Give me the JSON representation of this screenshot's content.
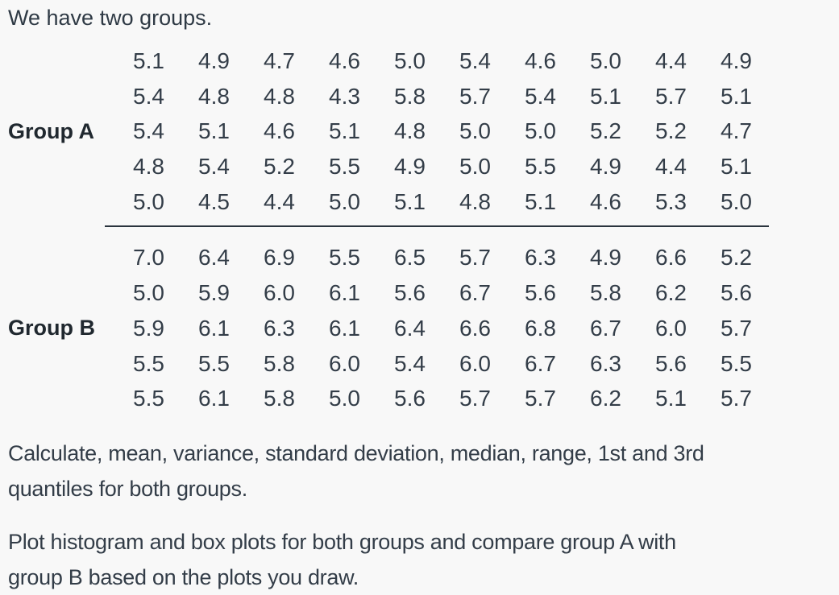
{
  "title": "We have two groups.",
  "groups": [
    {
      "label": "Group A",
      "rows": [
        [
          "5.1",
          "4.9",
          "4.7",
          "4.6",
          "5.0",
          "5.4",
          "4.6",
          "5.0",
          "4.4",
          "4.9"
        ],
        [
          "5.4",
          "4.8",
          "4.8",
          "4.3",
          "5.8",
          "5.7",
          "5.4",
          "5.1",
          "5.7",
          "5.1"
        ],
        [
          "5.4",
          "5.1",
          "4.6",
          "5.1",
          "4.8",
          "5.0",
          "5.0",
          "5.2",
          "5.2",
          "4.7"
        ],
        [
          "4.8",
          "5.4",
          "5.2",
          "5.5",
          "4.9",
          "5.0",
          "5.5",
          "4.9",
          "4.4",
          "5.1"
        ],
        [
          "5.0",
          "4.5",
          "4.4",
          "5.0",
          "5.1",
          "4.8",
          "5.1",
          "4.6",
          "5.3",
          "5.0"
        ]
      ]
    },
    {
      "label": "Group B",
      "rows": [
        [
          "7.0",
          "6.4",
          "6.9",
          "5.5",
          "6.5",
          "5.7",
          "6.3",
          "4.9",
          "6.6",
          "5.2"
        ],
        [
          "5.0",
          "5.9",
          "6.0",
          "6.1",
          "5.6",
          "6.7",
          "5.6",
          "5.8",
          "6.2",
          "5.6"
        ],
        [
          "5.9",
          "6.1",
          "6.3",
          "6.1",
          "6.4",
          "6.6",
          "6.8",
          "6.7",
          "6.0",
          "5.7"
        ],
        [
          "5.5",
          "5.5",
          "5.8",
          "6.0",
          "5.4",
          "6.0",
          "6.7",
          "6.3",
          "5.6",
          "5.5"
        ],
        [
          "5.5",
          "6.1",
          "5.8",
          "5.0",
          "5.6",
          "5.7",
          "5.7",
          "6.2",
          "5.1",
          "5.7"
        ]
      ]
    }
  ],
  "paragraphs": {
    "calculate": {
      "lines": [
        "Calculate, mean, variance, standard deviation, median, range, 1st and 3rd",
        "quantiles for both groups."
      ]
    },
    "plot": {
      "lines": [
        "Plot histogram and box plots for both groups and compare group A with",
        "group B based on the plots you draw."
      ]
    }
  },
  "colors": {
    "background": "#f8f8f8",
    "text": "#333d48",
    "label_text": "#20282f",
    "divider": "#2a343e"
  }
}
